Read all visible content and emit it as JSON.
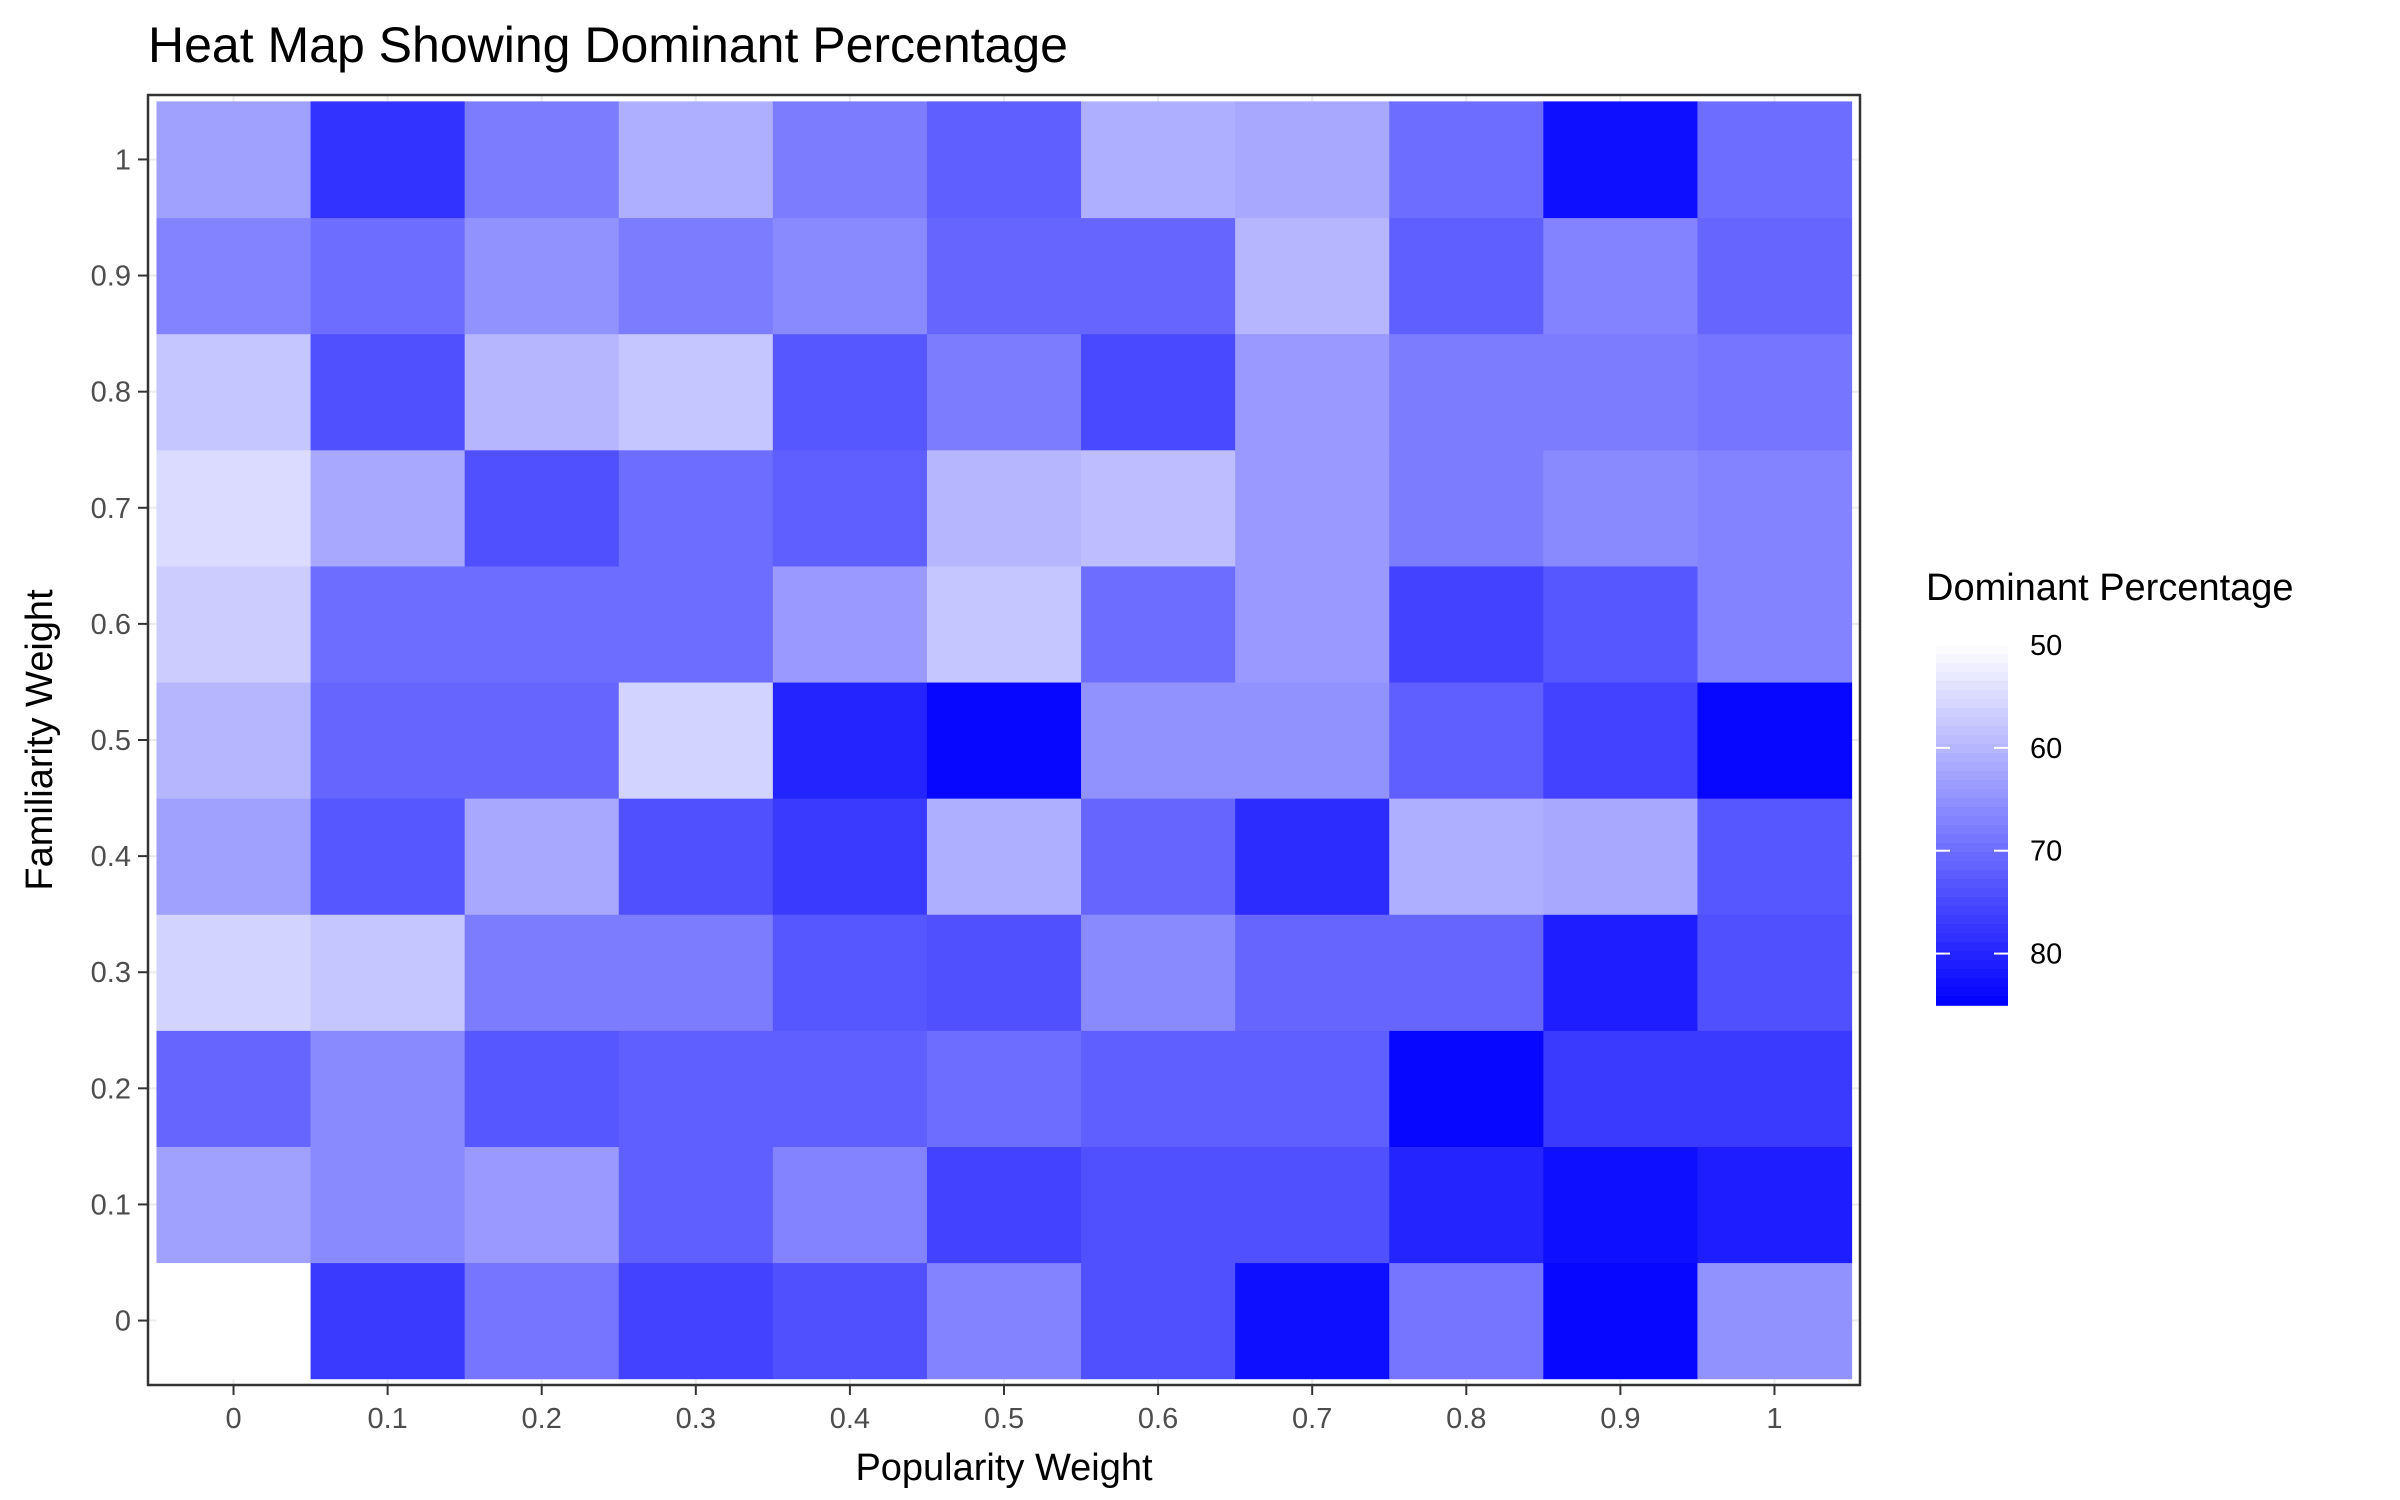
{
  "chart_data": {
    "type": "heatmap",
    "title": "Heat Map Showing Dominant Percentage",
    "xlabel": "Popularity Weight",
    "ylabel": "Familiarity Weight",
    "x": [
      0,
      0.1,
      0.2,
      0.3,
      0.4,
      0.5,
      0.6,
      0.7,
      0.8,
      0.9,
      1
    ],
    "y": [
      0,
      0.1,
      0.2,
      0.3,
      0.4,
      0.5,
      0.6,
      0.7,
      0.8,
      0.9,
      1
    ],
    "x_tick_labels": [
      "0",
      "0.1",
      "0.2",
      "0.3",
      "0.4",
      "0.5",
      "0.6",
      "0.7",
      "0.8",
      "0.9",
      "1"
    ],
    "y_tick_labels": [
      "0",
      "0.1",
      "0.2",
      "0.3",
      "0.4",
      "0.5",
      "0.6",
      "0.7",
      "0.8",
      "0.9",
      "1"
    ],
    "values": [
      [
        50,
        77,
        69,
        76,
        74,
        67,
        74,
        83,
        69,
        84,
        65
      ],
      [
        63,
        66,
        64,
        72,
        67,
        76,
        74,
        74,
        80,
        83,
        81
      ],
      [
        71,
        66,
        73,
        72,
        72,
        70,
        72,
        72,
        84,
        77,
        77
      ],
      [
        56,
        58,
        68,
        68,
        73,
        74,
        66,
        71,
        71,
        81,
        74
      ],
      [
        63,
        73,
        62,
        74,
        77,
        61,
        71,
        79,
        61,
        62,
        73
      ],
      [
        60,
        71,
        71,
        56,
        80,
        84,
        65,
        65,
        72,
        76,
        84
      ],
      [
        57,
        70,
        70,
        70,
        64,
        58,
        70,
        64,
        76,
        73,
        67
      ],
      [
        55,
        62,
        74,
        70,
        72,
        60,
        59,
        64,
        68,
        66,
        67
      ],
      [
        58,
        74,
        60,
        58,
        73,
        68,
        75,
        64,
        68,
        68,
        69
      ],
      [
        67,
        70,
        65,
        68,
        66,
        71,
        71,
        60,
        72,
        67,
        71
      ],
      [
        63,
        78,
        68,
        61,
        68,
        72,
        61,
        62,
        70,
        83,
        70
      ]
    ],
    "value_range": [
      50,
      85
    ],
    "color_low": "#ffffff",
    "color_high": "#0000ff",
    "grid": true,
    "legend": {
      "title": "Dominant Percentage",
      "breaks": [
        50,
        60,
        70,
        80
      ],
      "labels": [
        "50",
        "60",
        "70",
        "80"
      ],
      "placement": "right"
    }
  }
}
